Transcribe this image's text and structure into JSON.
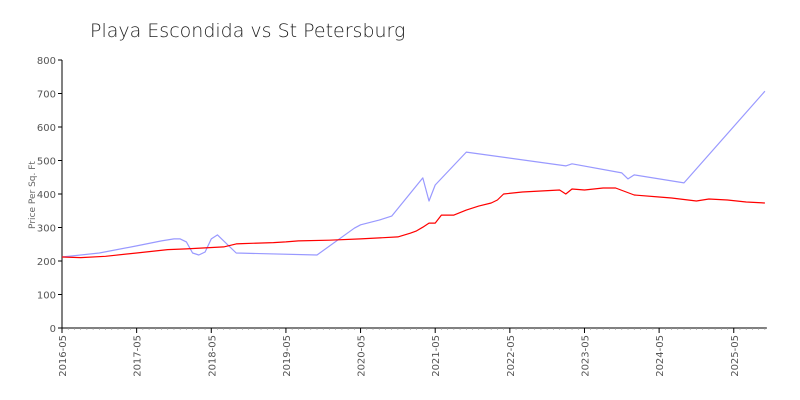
{
  "chart_data": {
    "type": "line",
    "title": "Playa Escondida vs St Petersburg",
    "xlabel": "",
    "ylabel": "Price Per Sq. Ft",
    "ylim": [
      0,
      800
    ],
    "yticks": [
      "0",
      "100",
      "200",
      "300",
      "400",
      "500",
      "600",
      "700",
      "800"
    ],
    "xlim": [
      "2016-05",
      "2025-10"
    ],
    "xticks": [
      "2016-05",
      "2017-05",
      "2018-05",
      "2019-05",
      "2020-05",
      "2021-05",
      "2022-05",
      "2023-05",
      "2024-05",
      "2025-05"
    ],
    "grid": false,
    "legend": "none",
    "series": [
      {
        "color": "#9999ff",
        "points": [
          [
            "2016-05",
            212
          ],
          [
            "2016-11",
            224
          ],
          [
            "2017-05",
            245
          ],
          [
            "2017-09",
            260
          ],
          [
            "2017-11",
            266
          ],
          [
            "2017-12",
            266
          ],
          [
            "2018-01",
            257
          ],
          [
            "2018-02",
            224
          ],
          [
            "2018-03",
            218
          ],
          [
            "2018-04",
            227
          ],
          [
            "2018-05",
            266
          ],
          [
            "2018-06",
            278
          ],
          [
            "2018-09",
            224
          ],
          [
            "2019-10",
            218
          ],
          [
            "2020-04",
            298
          ],
          [
            "2020-05",
            308
          ],
          [
            "2020-08",
            322
          ],
          [
            "2020-10",
            334
          ],
          [
            "2021-03",
            448
          ],
          [
            "2021-04",
            379
          ],
          [
            "2021-05",
            427
          ],
          [
            "2021-10",
            525
          ],
          [
            "2023-02",
            484
          ],
          [
            "2023-03",
            490
          ],
          [
            "2023-11",
            463
          ],
          [
            "2023-12",
            445
          ],
          [
            "2024-01",
            457
          ],
          [
            "2024-09",
            433
          ],
          [
            "2025-10",
            707
          ]
        ]
      },
      {
        "color": "#ff0000",
        "points": [
          [
            "2016-05",
            212
          ],
          [
            "2016-08",
            210
          ],
          [
            "2016-12",
            214
          ],
          [
            "2017-05",
            224
          ],
          [
            "2017-10",
            234
          ],
          [
            "2018-01",
            236
          ],
          [
            "2018-07",
            242
          ],
          [
            "2018-09",
            251
          ],
          [
            "2018-10",
            252
          ],
          [
            "2019-03",
            255
          ],
          [
            "2019-05",
            257
          ],
          [
            "2019-07",
            260
          ],
          [
            "2019-12",
            262
          ],
          [
            "2020-05",
            266
          ],
          [
            "2020-11",
            272
          ],
          [
            "2021-01",
            283
          ],
          [
            "2021-02",
            290
          ],
          [
            "2021-03",
            301
          ],
          [
            "2021-04",
            313
          ],
          [
            "2021-05",
            313
          ],
          [
            "2021-06",
            337
          ],
          [
            "2021-08",
            337
          ],
          [
            "2021-10",
            352
          ],
          [
            "2021-12",
            364
          ],
          [
            "2022-02",
            373
          ],
          [
            "2022-03",
            382
          ],
          [
            "2022-04",
            400
          ],
          [
            "2022-07",
            406
          ],
          [
            "2022-10",
            409
          ],
          [
            "2023-01",
            412
          ],
          [
            "2023-02",
            400
          ],
          [
            "2023-03",
            415
          ],
          [
            "2023-05",
            412
          ],
          [
            "2023-08",
            418
          ],
          [
            "2023-10",
            418
          ],
          [
            "2024-01",
            397
          ],
          [
            "2024-05",
            391
          ],
          [
            "2024-07",
            388
          ],
          [
            "2024-11",
            379
          ],
          [
            "2025-01",
            385
          ],
          [
            "2025-04",
            382
          ],
          [
            "2025-07",
            376
          ],
          [
            "2025-10",
            373
          ]
        ]
      }
    ]
  }
}
